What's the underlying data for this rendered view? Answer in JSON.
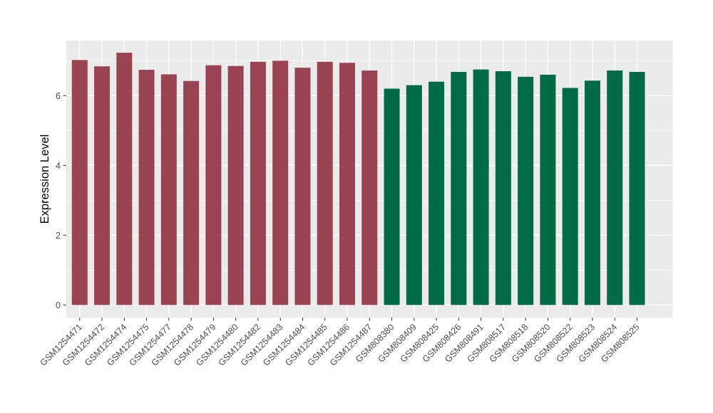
{
  "chart_data": {
    "type": "bar",
    "title": "",
    "xlabel": "",
    "ylabel": "Expression Level",
    "ylim": [
      0,
      7.6
    ],
    "yticks_major": [
      0,
      2,
      4,
      6
    ],
    "yticks_minor": [
      1,
      3,
      5,
      7
    ],
    "grid": true,
    "legend": "none",
    "panel_bg": "#EBEBEB",
    "grid_color": "#FFFFFF",
    "tick_color": "#333333",
    "tick_label_color": "#4D4D4D",
    "axis_title_color": "#000000",
    "group_colors": {
      "maroon": "#9A4352",
      "green": "#006B46"
    },
    "bars": [
      {
        "label": "GSM1254471",
        "value": 7.02,
        "group": "maroon"
      },
      {
        "label": "GSM1254472",
        "value": 6.84,
        "group": "maroon"
      },
      {
        "label": "GSM1254474",
        "value": 7.23,
        "group": "maroon"
      },
      {
        "label": "GSM1254475",
        "value": 6.74,
        "group": "maroon"
      },
      {
        "label": "GSM1254477",
        "value": 6.61,
        "group": "maroon"
      },
      {
        "label": "GSM1254478",
        "value": 6.42,
        "group": "maroon"
      },
      {
        "label": "GSM1254479",
        "value": 6.87,
        "group": "maroon"
      },
      {
        "label": "GSM1254480",
        "value": 6.85,
        "group": "maroon"
      },
      {
        "label": "GSM1254482",
        "value": 6.97,
        "group": "maroon"
      },
      {
        "label": "GSM1254483",
        "value": 7.0,
        "group": "maroon"
      },
      {
        "label": "GSM1254484",
        "value": 6.8,
        "group": "maroon"
      },
      {
        "label": "GSM1254485",
        "value": 6.97,
        "group": "maroon"
      },
      {
        "label": "GSM1254486",
        "value": 6.94,
        "group": "maroon"
      },
      {
        "label": "GSM1254487",
        "value": 6.72,
        "group": "maroon"
      },
      {
        "label": "GSM808380",
        "value": 6.2,
        "group": "green"
      },
      {
        "label": "GSM808409",
        "value": 6.3,
        "group": "green"
      },
      {
        "label": "GSM808425",
        "value": 6.4,
        "group": "green"
      },
      {
        "label": "GSM808426",
        "value": 6.68,
        "group": "green"
      },
      {
        "label": "GSM808491",
        "value": 6.75,
        "group": "green"
      },
      {
        "label": "GSM808517",
        "value": 6.7,
        "group": "green"
      },
      {
        "label": "GSM808518",
        "value": 6.54,
        "group": "green"
      },
      {
        "label": "GSM808520",
        "value": 6.6,
        "group": "green"
      },
      {
        "label": "GSM808522",
        "value": 6.22,
        "group": "green"
      },
      {
        "label": "GSM808523",
        "value": 6.43,
        "group": "green"
      },
      {
        "label": "GSM808524",
        "value": 6.72,
        "group": "green"
      },
      {
        "label": "GSM808525",
        "value": 6.68,
        "group": "green"
      }
    ]
  }
}
